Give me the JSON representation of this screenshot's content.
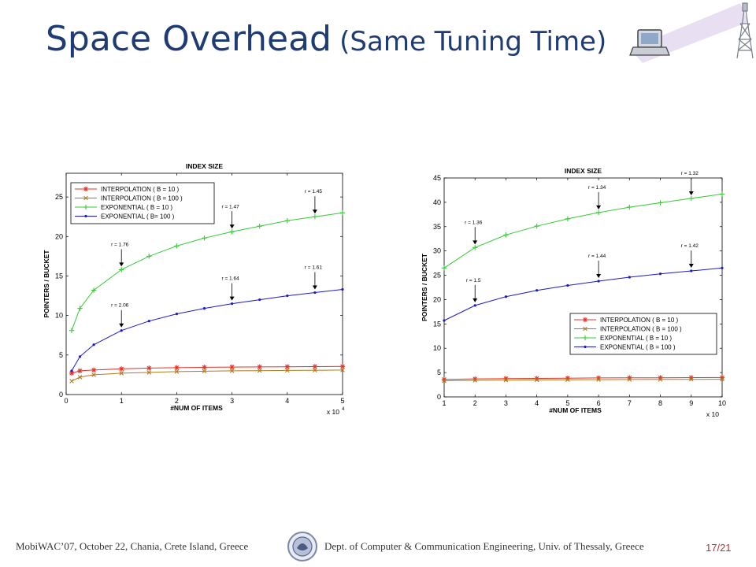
{
  "slide": {
    "title_main": "Space Overhead",
    "title_sub": "(Same Tuning Time)",
    "footer_left": "MobiWAC’07, October 22, Chania, Crete Island, Greece",
    "footer_right": "Dept. of Computer & Communication Engineering, Univ. of Thessaly, Greece",
    "page_number": "17/21"
  },
  "chart_data": [
    {
      "type": "line",
      "title": "INDEX SIZE",
      "xlabel": "#NUM OF ITEMS",
      "ylabel": "POINTERS / BUCKET",
      "x_multiplier_base": "x 10",
      "x_multiplier_exp": "4",
      "xlim": [
        0,
        5
      ],
      "ylim": [
        0,
        28
      ],
      "xticks": [
        0,
        1,
        2,
        3,
        4,
        5
      ],
      "yticks": [
        0,
        5,
        10,
        15,
        20,
        25
      ],
      "grid": false,
      "legend_position": "top-left",
      "x": [
        0.1,
        0.25,
        0.5,
        1,
        1.5,
        2,
        2.5,
        3,
        3.5,
        4,
        4.5,
        5
      ],
      "series": [
        {
          "name": "INTERPOLATION ( B = 10 )",
          "color": "#e8332a",
          "marker": "star",
          "values": [
            2.7,
            3.0,
            3.1,
            3.25,
            3.35,
            3.4,
            3.45,
            3.48,
            3.5,
            3.52,
            3.54,
            3.56
          ]
        },
        {
          "name": "INTERPOLATION ( B = 100 )",
          "color": "#b07a1e",
          "marker": "x",
          "values": [
            1.7,
            2.2,
            2.5,
            2.7,
            2.8,
            2.9,
            2.95,
            3.0,
            3.02,
            3.05,
            3.07,
            3.1
          ]
        },
        {
          "name": "EXPONENTIAL ( B = 10 )",
          "color": "#33cc33",
          "marker": "plus",
          "values": [
            8.1,
            10.9,
            13.2,
            15.8,
            17.5,
            18.8,
            19.8,
            20.6,
            21.3,
            22.0,
            22.5,
            23.0
          ]
        },
        {
          "name": "EXPONENTIAL ( B= 100 )",
          "color": "#1a1acc",
          "marker": "dot",
          "values": [
            3.0,
            4.8,
            6.3,
            8.1,
            9.3,
            10.2,
            10.9,
            11.5,
            12.0,
            12.5,
            12.9,
            13.3
          ]
        }
      ],
      "annotations": [
        {
          "text": "r = 1.76",
          "x": 1.0,
          "y": 15.8
        },
        {
          "text": "r = 1.47",
          "x": 3.0,
          "y": 20.6
        },
        {
          "text": "r = 1.45",
          "x": 4.5,
          "y": 22.5
        },
        {
          "text": "r = 2.06",
          "x": 1.0,
          "y": 8.1
        },
        {
          "text": "r = 1.64",
          "x": 3.0,
          "y": 11.5
        },
        {
          "text": "r = 1.61",
          "x": 4.5,
          "y": 12.9
        }
      ]
    },
    {
      "type": "line",
      "title": "INDEX SIZE",
      "xlabel": "#NUM OF ITEMS",
      "ylabel": "POINTERS / BUCKET",
      "x_multiplier_base": "x 10",
      "xlim": [
        1,
        10
      ],
      "ylim": [
        0,
        45
      ],
      "xticks": [
        1,
        2,
        3,
        4,
        5,
        6,
        7,
        8,
        9,
        10
      ],
      "yticks": [
        0,
        5,
        10,
        15,
        20,
        25,
        30,
        35,
        40,
        45
      ],
      "grid": false,
      "legend_position": "bottom-right",
      "x": [
        1,
        2,
        3,
        4,
        5,
        6,
        7,
        8,
        9,
        10
      ],
      "series": [
        {
          "name": "INTERPOLATION ( B = 10 )",
          "color": "#e8332a",
          "marker": "star",
          "values": [
            3.6,
            3.7,
            3.75,
            3.8,
            3.85,
            3.9,
            3.92,
            3.94,
            3.96,
            3.98
          ]
        },
        {
          "name": "INTERPOLATION ( B = 100 )",
          "color": "#b07a1e",
          "marker": "x",
          "values": [
            3.3,
            3.4,
            3.45,
            3.5,
            3.52,
            3.55,
            3.57,
            3.59,
            3.6,
            3.62
          ]
        },
        {
          "name": "EXPONENTIAL ( B = 10 )",
          "color": "#33cc33",
          "marker": "plus",
          "values": [
            26.5,
            30.7,
            33.3,
            35.1,
            36.6,
            37.9,
            39.0,
            39.9,
            40.8,
            41.7
          ]
        },
        {
          "name": "EXPONENTIAL ( B = 100 )",
          "color": "#1a1acc",
          "marker": "dot",
          "values": [
            15.7,
            18.8,
            20.6,
            21.9,
            22.9,
            23.8,
            24.6,
            25.3,
            25.9,
            26.5
          ]
        }
      ],
      "annotations": [
        {
          "text": "r = 1.36",
          "x": 2,
          "y": 30.7
        },
        {
          "text": "r = 1.34",
          "x": 6,
          "y": 37.9
        },
        {
          "text": "r = 1.32",
          "x": 9,
          "y": 40.8
        },
        {
          "text": "r = 1.5",
          "x": 2,
          "y": 18.8
        },
        {
          "text": "r = 1.44",
          "x": 6,
          "y": 23.8
        },
        {
          "text": "r = 1.42",
          "x": 9,
          "y": 25.9
        }
      ]
    }
  ]
}
